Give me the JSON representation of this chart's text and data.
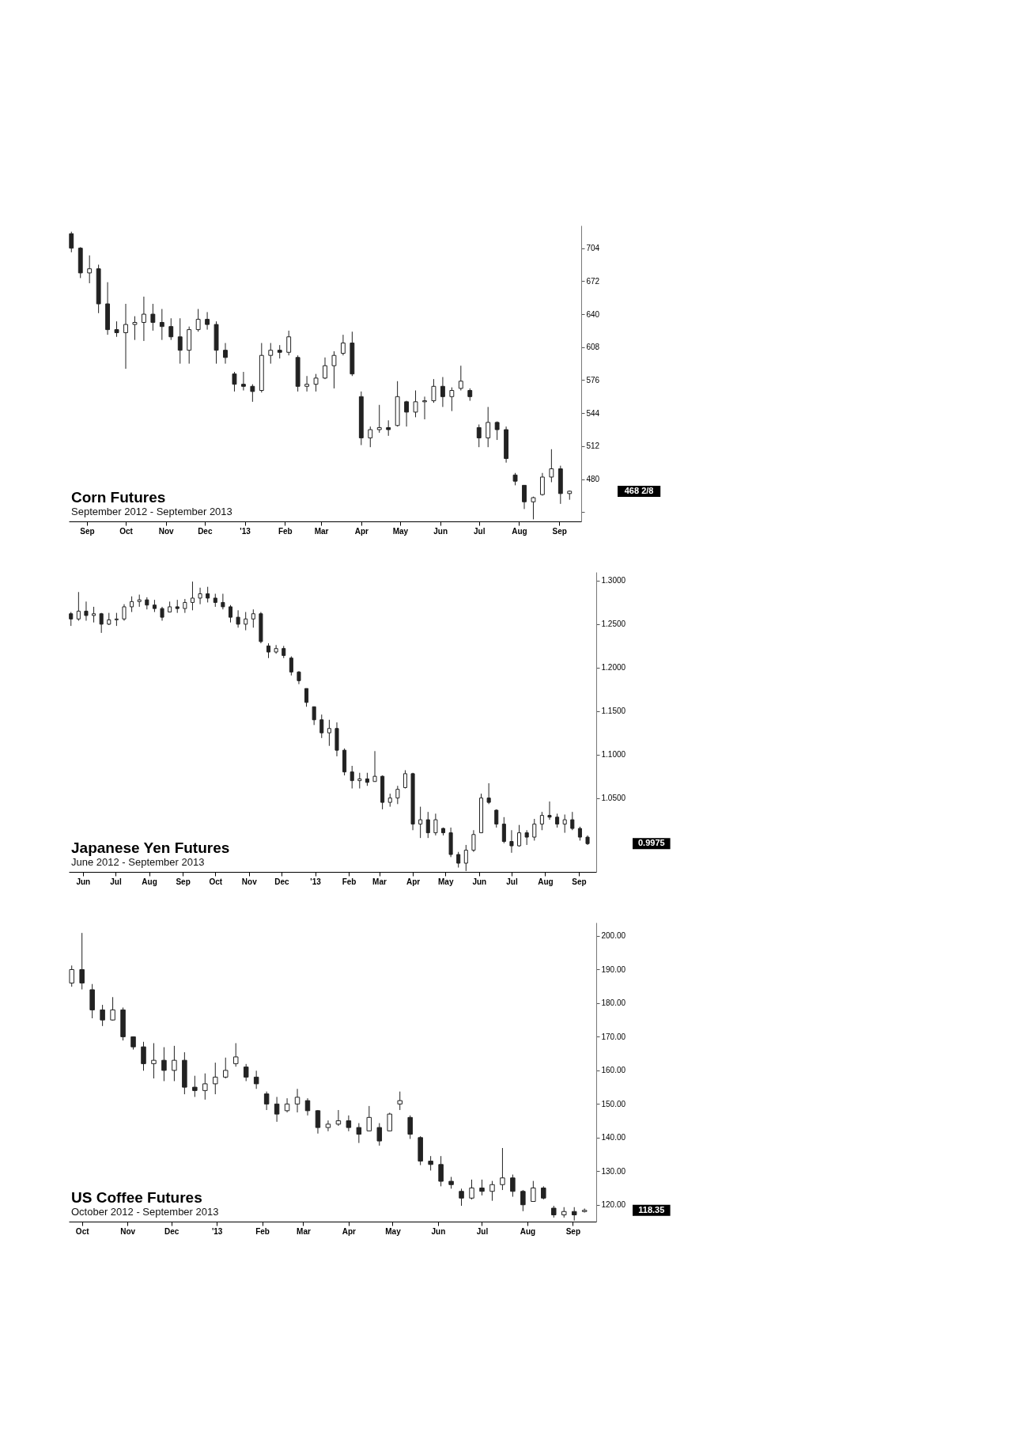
{
  "chart_data": [
    {
      "type": "candlestick",
      "title": "Corn Futures",
      "subtitle": "September 2012 - September 2013",
      "color": "#222222",
      "x": [
        "2012-08-20",
        "2012-08-27",
        "2012-09-03",
        "2012-09-10",
        "2012-09-17",
        "2012-09-24",
        "2012-10-01",
        "2012-10-08",
        "2012-10-15",
        "2012-10-22",
        "2012-10-29",
        "2012-11-05",
        "2012-11-12",
        "2012-11-19",
        "2012-11-26",
        "2012-12-03",
        "2012-12-10",
        "2012-12-17",
        "2012-12-24",
        "2012-12-31",
        "2013-01-07",
        "2013-01-14",
        "2013-01-21",
        "2013-01-28",
        "2013-02-04",
        "2013-02-11",
        "2013-02-18",
        "2013-02-25",
        "2013-03-04",
        "2013-03-11",
        "2013-03-18",
        "2013-03-25",
        "2013-04-01",
        "2013-04-08",
        "2013-04-15",
        "2013-04-22",
        "2013-04-29",
        "2013-05-06",
        "2013-05-13",
        "2013-05-20",
        "2013-05-27",
        "2013-06-03",
        "2013-06-10",
        "2013-06-17",
        "2013-06-24",
        "2013-07-01",
        "2013-07-08",
        "2013-07-15",
        "2013-07-22",
        "2013-07-29",
        "2013-08-05",
        "2013-08-12",
        "2013-08-19",
        "2013-08-26",
        "2013-09-02",
        "2013-09-09"
      ],
      "ohlc": [
        [
          718,
          720,
          700,
          704
        ],
        [
          704,
          705,
          675,
          680
        ],
        [
          680,
          697,
          670,
          684
        ],
        [
          684,
          688,
          641,
          650
        ],
        [
          650,
          671,
          620,
          625
        ],
        [
          625,
          633,
          618,
          622
        ],
        [
          622,
          650,
          587,
          630
        ],
        [
          630,
          638,
          615,
          632
        ],
        [
          632,
          657,
          614,
          640
        ],
        [
          640,
          650,
          624,
          632
        ],
        [
          632,
          645,
          615,
          628
        ],
        [
          628,
          636,
          615,
          618
        ],
        [
          618,
          636,
          592,
          605
        ],
        [
          605,
          628,
          592,
          625
        ],
        [
          625,
          645,
          623,
          635
        ],
        [
          635,
          642,
          625,
          630
        ],
        [
          630,
          633,
          592,
          605
        ],
        [
          605,
          612,
          592,
          598
        ],
        [
          582,
          584,
          565,
          572
        ],
        [
          572,
          584,
          566,
          570
        ],
        [
          570,
          572,
          555,
          565
        ],
        [
          566,
          612,
          564,
          600
        ],
        [
          600,
          612,
          592,
          605
        ],
        [
          605,
          610,
          597,
          603
        ],
        [
          603,
          624,
          600,
          618
        ],
        [
          598,
          600,
          565,
          570
        ],
        [
          570,
          580,
          565,
          572
        ],
        [
          572,
          582,
          565,
          578
        ],
        [
          578,
          598,
          577,
          590
        ],
        [
          590,
          604,
          568,
          600
        ],
        [
          602,
          620,
          600,
          612
        ],
        [
          612,
          623,
          580,
          582
        ],
        [
          560,
          565,
          513,
          520
        ],
        [
          520,
          531,
          511,
          528
        ],
        [
          528,
          552,
          525,
          530
        ],
        [
          530,
          537,
          522,
          528
        ],
        [
          532,
          575,
          531,
          560
        ],
        [
          555,
          556,
          531,
          545
        ],
        [
          545,
          566,
          540,
          555
        ],
        [
          555,
          560,
          538,
          556
        ],
        [
          556,
          577,
          554,
          570
        ],
        [
          570,
          579,
          550,
          560
        ],
        [
          560,
          569,
          546,
          566
        ],
        [
          568,
          590,
          566,
          575
        ],
        [
          566,
          568,
          556,
          560
        ],
        [
          530,
          533,
          511,
          520
        ],
        [
          520,
          550,
          511,
          535
        ],
        [
          535,
          536,
          518,
          528
        ],
        [
          528,
          531,
          496,
          500
        ],
        [
          484,
          486,
          474,
          478
        ],
        [
          474,
          474,
          451,
          458
        ],
        [
          458,
          463,
          441,
          462
        ],
        [
          465,
          486,
          464,
          482
        ],
        [
          482,
          509,
          477,
          490
        ],
        [
          490,
          493,
          456,
          466
        ],
        [
          466,
          469,
          460,
          468.25
        ]
      ],
      "xlim": [
        "2012-08-18",
        "2013-09-18"
      ],
      "xticks": [
        {
          "value": "2012-09-01",
          "label": "Sep"
        },
        {
          "value": "2012-10-01",
          "label": "Oct"
        },
        {
          "value": "2012-11-01",
          "label": "Nov"
        },
        {
          "value": "2012-12-01",
          "label": "Dec"
        },
        {
          "value": "2013-01-01",
          "label": "'13"
        },
        {
          "value": "2013-02-01",
          "label": "Feb"
        },
        {
          "value": "2013-03-01",
          "label": "Mar"
        },
        {
          "value": "2013-04-01",
          "label": "Apr"
        },
        {
          "value": "2013-05-01",
          "label": "May"
        },
        {
          "value": "2013-06-01",
          "label": "Jun"
        },
        {
          "value": "2013-07-01",
          "label": "Jul"
        },
        {
          "value": "2013-08-01",
          "label": "Aug"
        },
        {
          "value": "2013-09-01",
          "label": "Sep"
        }
      ],
      "ylim": [
        439,
        726
      ],
      "yticks": [
        704,
        672,
        640,
        608,
        576,
        544,
        512,
        480,
        {
          "value": 448,
          "label": null
        }
      ],
      "annotations": [
        "468 2/8"
      ]
    },
    {
      "type": "candlestick",
      "title": "Japanese Yen Futures",
      "subtitle": "June 2012 - September 2013",
      "color": "#222222",
      "x": [
        "2012-05-21",
        "2012-05-28",
        "2012-06-04",
        "2012-06-11",
        "2012-06-18",
        "2012-06-25",
        "2012-07-02",
        "2012-07-09",
        "2012-07-16",
        "2012-07-23",
        "2012-07-30",
        "2012-08-06",
        "2012-08-13",
        "2012-08-20",
        "2012-08-27",
        "2012-09-03",
        "2012-09-10",
        "2012-09-17",
        "2012-09-24",
        "2012-10-01",
        "2012-10-08",
        "2012-10-15",
        "2012-10-22",
        "2012-10-29",
        "2012-11-05",
        "2012-11-12",
        "2012-11-19",
        "2012-11-26",
        "2012-12-03",
        "2012-12-10",
        "2012-12-17",
        "2012-12-24",
        "2012-12-31",
        "2013-01-07",
        "2013-01-14",
        "2013-01-21",
        "2013-01-28",
        "2013-02-04",
        "2013-02-11",
        "2013-02-18",
        "2013-02-25",
        "2013-03-04",
        "2013-03-11",
        "2013-03-18",
        "2013-03-25",
        "2013-04-01",
        "2013-04-08",
        "2013-04-15",
        "2013-04-22",
        "2013-04-29",
        "2013-05-06",
        "2013-05-13",
        "2013-05-20",
        "2013-05-27",
        "2013-06-03",
        "2013-06-10",
        "2013-06-17",
        "2013-06-24",
        "2013-07-01",
        "2013-07-08",
        "2013-07-15",
        "2013-07-22",
        "2013-07-29",
        "2013-08-05",
        "2013-08-12",
        "2013-08-19",
        "2013-08-26",
        "2013-09-02",
        "2013-09-09"
      ],
      "ohlc": [
        [
          1.262,
          1.264,
          1.248,
          1.256
        ],
        [
          1.256,
          1.287,
          1.254,
          1.265
        ],
        [
          1.265,
          1.276,
          1.254,
          1.26
        ],
        [
          1.26,
          1.27,
          1.252,
          1.262
        ],
        [
          1.262,
          1.263,
          1.24,
          1.25
        ],
        [
          1.25,
          1.263,
          1.249,
          1.255
        ],
        [
          1.255,
          1.263,
          1.248,
          1.256
        ],
        [
          1.256,
          1.273,
          1.254,
          1.27
        ],
        [
          1.27,
          1.282,
          1.264,
          1.276
        ],
        [
          1.276,
          1.284,
          1.27,
          1.278
        ],
        [
          1.278,
          1.281,
          1.267,
          1.272
        ],
        [
          1.272,
          1.278,
          1.264,
          1.268
        ],
        [
          1.268,
          1.27,
          1.254,
          1.258
        ],
        [
          1.264,
          1.276,
          1.264,
          1.27
        ],
        [
          1.27,
          1.278,
          1.263,
          1.268
        ],
        [
          1.268,
          1.279,
          1.263,
          1.275
        ],
        [
          1.275,
          1.299,
          1.266,
          1.28
        ],
        [
          1.28,
          1.292,
          1.273,
          1.285
        ],
        [
          1.285,
          1.293,
          1.275,
          1.28
        ],
        [
          1.28,
          1.285,
          1.27,
          1.275
        ],
        [
          1.275,
          1.285,
          1.267,
          1.27
        ],
        [
          1.27,
          1.272,
          1.252,
          1.258
        ],
        [
          1.258,
          1.266,
          1.246,
          1.25
        ],
        [
          1.25,
          1.264,
          1.243,
          1.256
        ],
        [
          1.256,
          1.267,
          1.246,
          1.262
        ],
        [
          1.262,
          1.264,
          1.228,
          1.23
        ],
        [
          1.225,
          1.228,
          1.211,
          1.218
        ],
        [
          1.218,
          1.226,
          1.216,
          1.222
        ],
        [
          1.222,
          1.225,
          1.211,
          1.214
        ],
        [
          1.211,
          1.213,
          1.191,
          1.195
        ],
        [
          1.195,
          1.196,
          1.181,
          1.185
        ],
        [
          1.176,
          1.176,
          1.155,
          1.16
        ],
        [
          1.155,
          1.155,
          1.134,
          1.14
        ],
        [
          1.14,
          1.146,
          1.119,
          1.125
        ],
        [
          1.125,
          1.14,
          1.11,
          1.13
        ],
        [
          1.13,
          1.137,
          1.098,
          1.105
        ],
        [
          1.105,
          1.107,
          1.076,
          1.08
        ],
        [
          1.08,
          1.087,
          1.061,
          1.07
        ],
        [
          1.07,
          1.079,
          1.061,
          1.072
        ],
        [
          1.072,
          1.079,
          1.064,
          1.068
        ],
        [
          1.069,
          1.104,
          1.069,
          1.075
        ],
        [
          1.075,
          1.076,
          1.037,
          1.045
        ],
        [
          1.045,
          1.055,
          1.04,
          1.05
        ],
        [
          1.05,
          1.064,
          1.043,
          1.06
        ],
        [
          1.062,
          1.082,
          1.061,
          1.078
        ],
        [
          1.078,
          1.079,
          1.013,
          1.02
        ],
        [
          1.02,
          1.04,
          1.004,
          1.025
        ],
        [
          1.025,
          1.034,
          1.004,
          1.01
        ],
        [
          1.01,
          1.032,
          1.007,
          1.025
        ],
        [
          1.015,
          1.016,
          1.007,
          1.01
        ],
        [
          1.01,
          1.016,
          0.982,
          0.985
        ],
        [
          0.985,
          0.988,
          0.97,
          0.975
        ],
        [
          0.975,
          0.996,
          0.966,
          0.99
        ],
        [
          0.99,
          1.013,
          0.988,
          1.008
        ],
        [
          1.01,
          1.055,
          1.01,
          1.05
        ],
        [
          1.05,
          1.067,
          1.043,
          1.045
        ],
        [
          1.036,
          1.037,
          1.016,
          1.02
        ],
        [
          1.02,
          1.028,
          0.998,
          1.0
        ],
        [
          1.0,
          1.013,
          0.987,
          0.995
        ],
        [
          0.995,
          1.019,
          0.994,
          1.01
        ],
        [
          1.01,
          1.013,
          0.996,
          1.005
        ],
        [
          1.005,
          1.026,
          1.001,
          1.02
        ],
        [
          1.02,
          1.034,
          1.013,
          1.03
        ],
        [
          1.03,
          1.046,
          1.025,
          1.028
        ],
        [
          1.028,
          1.032,
          1.016,
          1.02
        ],
        [
          1.02,
          1.031,
          1.01,
          1.025
        ],
        [
          1.025,
          1.034,
          1.013,
          1.015
        ],
        [
          1.015,
          1.017,
          1.001,
          1.005
        ],
        [
          1.005,
          1.007,
          0.996,
          0.9975
        ]
      ],
      "xlim": [
        "2012-05-19",
        "2013-09-17"
      ],
      "xticks": [
        {
          "value": "2012-06-01",
          "label": "Jun"
        },
        {
          "value": "2012-07-01",
          "label": "Jul"
        },
        {
          "value": "2012-08-01",
          "label": "Aug"
        },
        {
          "value": "2012-09-01",
          "label": "Sep"
        },
        {
          "value": "2012-10-01",
          "label": "Oct"
        },
        {
          "value": "2012-11-01",
          "label": "Nov"
        },
        {
          "value": "2012-12-01",
          "label": "Dec"
        },
        {
          "value": "2013-01-01",
          "label": "'13"
        },
        {
          "value": "2013-02-01",
          "label": "Feb"
        },
        {
          "value": "2013-03-01",
          "label": "Mar"
        },
        {
          "value": "2013-04-01",
          "label": "Apr"
        },
        {
          "value": "2013-05-01",
          "label": "May"
        },
        {
          "value": "2013-06-01",
          "label": "Jun"
        },
        {
          "value": "2013-07-01",
          "label": "Jul"
        },
        {
          "value": "2013-08-01",
          "label": "Aug"
        },
        {
          "value": "2013-09-01",
          "label": "Sep"
        }
      ],
      "ylim": [
        0.965,
        1.31
      ],
      "yticks": [
        {
          "value": 1.3,
          "label": "1.3000"
        },
        {
          "value": 1.25,
          "label": "1.2500"
        },
        {
          "value": 1.2,
          "label": "1.2000"
        },
        {
          "value": 1.15,
          "label": "1.1500"
        },
        {
          "value": 1.1,
          "label": "1.1000"
        },
        {
          "value": 1.05,
          "label": "1.0500"
        }
      ],
      "annotations": [
        "0.9975"
      ]
    },
    {
      "type": "candlestick",
      "title": "US Coffee Futures",
      "subtitle": "October 2012 - September 2013",
      "color": "#222222",
      "x": [
        "2012-09-24",
        "2012-10-01",
        "2012-10-08",
        "2012-10-15",
        "2012-10-22",
        "2012-10-29",
        "2012-11-05",
        "2012-11-12",
        "2012-11-19",
        "2012-11-26",
        "2012-12-03",
        "2012-12-10",
        "2012-12-17",
        "2012-12-24",
        "2012-12-31",
        "2013-01-07",
        "2013-01-14",
        "2013-01-21",
        "2013-01-28",
        "2013-02-04",
        "2013-02-11",
        "2013-02-18",
        "2013-02-25",
        "2013-03-04",
        "2013-03-11",
        "2013-03-18",
        "2013-03-25",
        "2013-04-01",
        "2013-04-08",
        "2013-04-15",
        "2013-04-22",
        "2013-04-29",
        "2013-05-06",
        "2013-05-13",
        "2013-05-20",
        "2013-05-27",
        "2013-06-03",
        "2013-06-10",
        "2013-06-17",
        "2013-06-24",
        "2013-07-01",
        "2013-07-08",
        "2013-07-15",
        "2013-07-22",
        "2013-07-29",
        "2013-08-05",
        "2013-08-12",
        "2013-08-19",
        "2013-08-26",
        "2013-09-02",
        "2013-09-09"
      ],
      "ohlc": [
        [
          186,
          191.2,
          184.9,
          190
        ],
        [
          190,
          200.9,
          184.1,
          186
        ],
        [
          184,
          185.7,
          175.5,
          178
        ],
        [
          178,
          179.5,
          173.2,
          175
        ],
        [
          175,
          181.8,
          174.8,
          178
        ],
        [
          178,
          178.7,
          168.9,
          170
        ],
        [
          170,
          170.1,
          166.2,
          167
        ],
        [
          167,
          168.5,
          159.9,
          162
        ],
        [
          162,
          168.1,
          157.6,
          163
        ],
        [
          163,
          166.9,
          156.8,
          160
        ],
        [
          160,
          167.3,
          156.8,
          163
        ],
        [
          163,
          165.4,
          152.9,
          155
        ],
        [
          155,
          158.4,
          152.1,
          154
        ],
        [
          154,
          159.1,
          151.3,
          156
        ],
        [
          156,
          162.3,
          152.9,
          158
        ],
        [
          158,
          163.8,
          157.6,
          160
        ],
        [
          162,
          168.1,
          161.1,
          164
        ],
        [
          161,
          161.9,
          156.8,
          158
        ],
        [
          158,
          159.9,
          154.5,
          156
        ],
        [
          153,
          153.7,
          148.2,
          150
        ],
        [
          150,
          152.1,
          144.7,
          147
        ],
        [
          148,
          151.7,
          147.5,
          150
        ],
        [
          150,
          154.5,
          147.5,
          152
        ],
        [
          151,
          151.7,
          146.6,
          148
        ],
        [
          148,
          148.2,
          141.2,
          143
        ],
        [
          143,
          145.1,
          141.9,
          144
        ],
        [
          144,
          148.2,
          143.5,
          145
        ],
        [
          145,
          146.6,
          141.9,
          143
        ],
        [
          143,
          144.3,
          138.4,
          141
        ],
        [
          142,
          149.4,
          141.9,
          146
        ],
        [
          143,
          144.3,
          137.6,
          139
        ],
        [
          142,
          147.4,
          141.9,
          147
        ],
        [
          150,
          153.7,
          148.2,
          151
        ],
        [
          146,
          146.6,
          139.6,
          141
        ],
        [
          140,
          140.4,
          131.8,
          133
        ],
        [
          133,
          134.5,
          130.2,
          132
        ],
        [
          132,
          134.5,
          125.5,
          127
        ],
        [
          127,
          128.3,
          124.8,
          126
        ],
        [
          124,
          124.8,
          119.7,
          122
        ],
        [
          122,
          127.5,
          121.6,
          125
        ],
        [
          125,
          127.5,
          122.8,
          124
        ],
        [
          124,
          127.1,
          121.2,
          126
        ],
        [
          126,
          136.9,
          124.4,
          128
        ],
        [
          128,
          129,
          122.4,
          124
        ],
        [
          124,
          124.4,
          118.1,
          120
        ],
        [
          121,
          127.1,
          120.9,
          125
        ],
        [
          125,
          125.5,
          121.6,
          122
        ],
        [
          119,
          119.7,
          116.2,
          117
        ],
        [
          117,
          119.3,
          116.2,
          118
        ],
        [
          118,
          119.3,
          115.3,
          117
        ],
        [
          118,
          118.9,
          117.7,
          118.35
        ]
      ],
      "xlim": [
        "2012-09-22",
        "2013-09-17"
      ],
      "xticks": [
        {
          "value": "2012-10-01",
          "label": "Oct"
        },
        {
          "value": "2012-11-01",
          "label": "Nov"
        },
        {
          "value": "2012-12-01",
          "label": "Dec"
        },
        {
          "value": "2013-01-01",
          "label": "'13"
        },
        {
          "value": "2013-02-01",
          "label": "Feb"
        },
        {
          "value": "2013-03-01",
          "label": "Mar"
        },
        {
          "value": "2013-04-01",
          "label": "Apr"
        },
        {
          "value": "2013-05-01",
          "label": "May"
        },
        {
          "value": "2013-06-01",
          "label": "Jun"
        },
        {
          "value": "2013-07-01",
          "label": "Jul"
        },
        {
          "value": "2013-08-01",
          "label": "Aug"
        },
        {
          "value": "2013-09-01",
          "label": "Sep"
        }
      ],
      "ylim": [
        115,
        204
      ],
      "yticks": [
        {
          "value": 200,
          "label": "200.00"
        },
        {
          "value": 190,
          "label": "190.00"
        },
        {
          "value": 180,
          "label": "180.00"
        },
        {
          "value": 170,
          "label": "170.00"
        },
        {
          "value": 160,
          "label": "160.00"
        },
        {
          "value": 150,
          "label": "150.00"
        },
        {
          "value": 140,
          "label": "140.00"
        },
        {
          "value": 130,
          "label": "130.00"
        },
        {
          "value": 120,
          "label": "120.00"
        }
      ],
      "annotations": [
        "118.35"
      ]
    }
  ]
}
